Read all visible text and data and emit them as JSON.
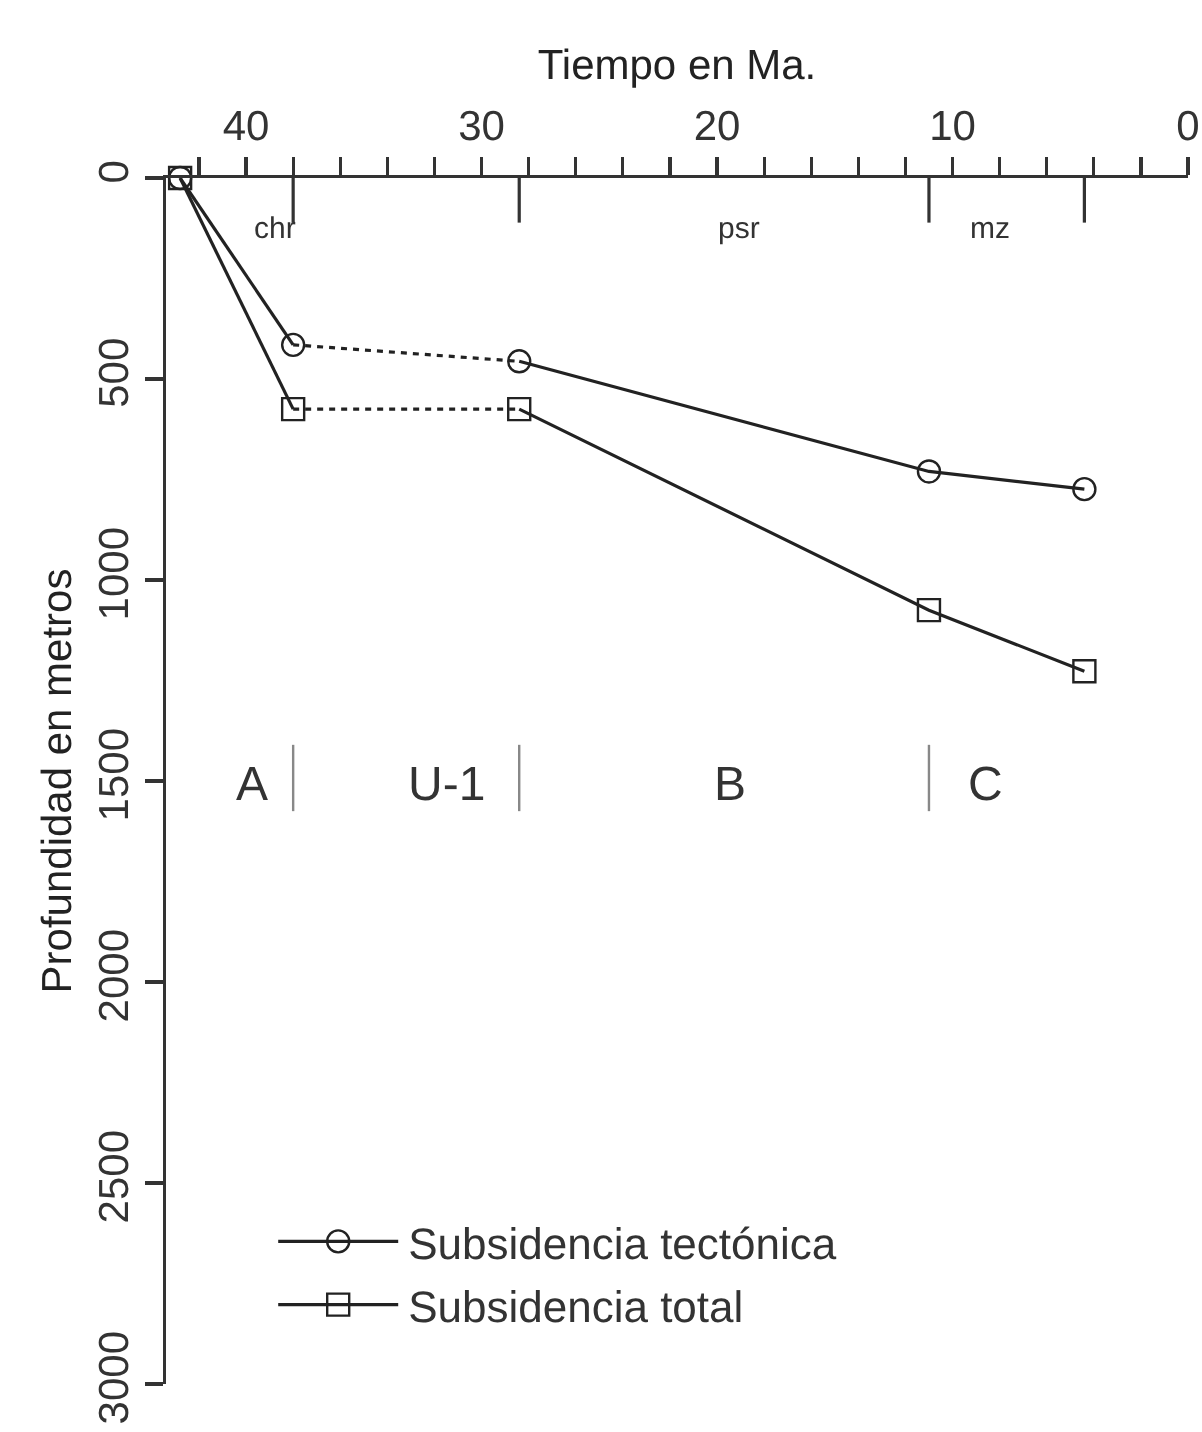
{
  "chart_data": {
    "type": "line",
    "xlabel": "Tiempo en Ma.",
    "ylabel": "Profundidad en metros",
    "xlim": [
      43.4,
      0
    ],
    "ylim": [
      3000,
      0
    ],
    "xticks": [
      {
        "value": 42,
        "label": null
      },
      40,
      {
        "value": 38,
        "label": null
      },
      {
        "value": 36,
        "label": null
      },
      {
        "value": 34,
        "label": null
      },
      {
        "value": 32,
        "label": null
      },
      30,
      {
        "value": 28,
        "label": null
      },
      {
        "value": 26,
        "label": null
      },
      {
        "value": 24,
        "label": null
      },
      {
        "value": 22,
        "label": null
      },
      20,
      {
        "value": 18,
        "label": null
      },
      {
        "value": 16,
        "label": null
      },
      {
        "value": 14,
        "label": null
      },
      {
        "value": 12,
        "label": null
      },
      10,
      {
        "value": 8,
        "label": null
      },
      {
        "value": 6,
        "label": null
      },
      {
        "value": 4,
        "label": null
      },
      {
        "value": 2,
        "label": null
      },
      0
    ],
    "yticks": [
      0,
      500,
      1000,
      1500,
      2000,
      2500,
      3000
    ],
    "grid": false,
    "legend": "bottom left",
    "series": [
      {
        "name": "Subsidencia tectónica",
        "color": "#222222",
        "marker": "circle",
        "line_style": "solid",
        "x": [
          42.8,
          38
        ],
        "values": [
          0,
          415
        ]
      },
      {
        "color": "#222222",
        "line_style": "dotted",
        "x": [
          38,
          28.4
        ],
        "values": [
          415,
          456
        ]
      },
      {
        "color": "#222222",
        "marker": "circle",
        "line_style": "solid",
        "x": [
          28.4,
          11,
          4.4
        ],
        "values": [
          456,
          730,
          774
        ]
      },
      {
        "name": "Subsidencia total",
        "color": "#222222",
        "marker": "square",
        "line_style": "solid",
        "x": [
          42.8,
          38
        ],
        "values": [
          0,
          575
        ]
      },
      {
        "color": "#222222",
        "line_style": "dotted",
        "x": [
          38,
          28.4
        ],
        "values": [
          575,
          575
        ]
      },
      {
        "color": "#222222",
        "marker": "square",
        "line_style": "solid",
        "x": [
          28.4,
          11,
          4.4
        ],
        "values": [
          575,
          1075,
          1227
        ]
      }
    ],
    "annotations": [
      "chr",
      "psr",
      "mz",
      "A",
      "U-1",
      "B",
      "C"
    ]
  }
}
